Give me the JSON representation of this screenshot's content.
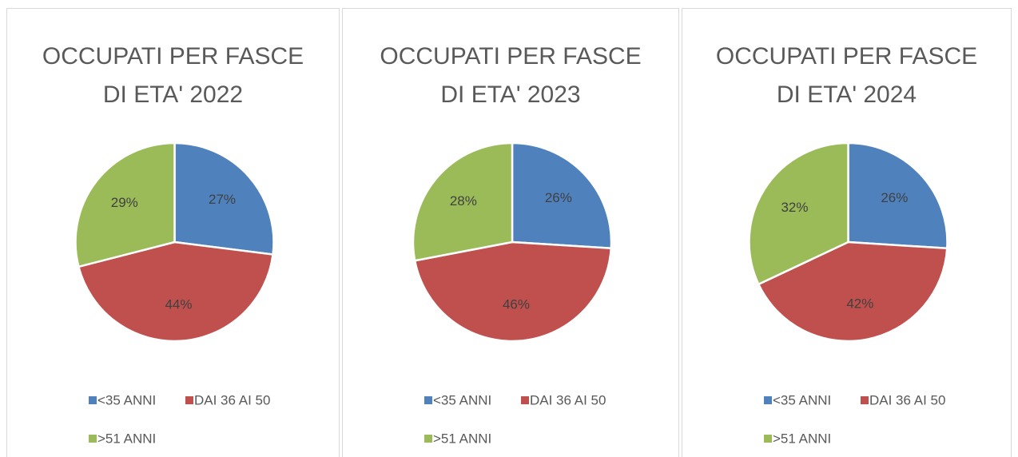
{
  "chart_data": [
    {
      "type": "pie",
      "title": "OCCUPATI PER FASCE DI ETA' 2022",
      "categories": [
        "<35 ANNI",
        "DAI 36 AI 50",
        ">51 ANNI"
      ],
      "values": [
        27,
        44,
        29
      ],
      "value_labels": [
        "27%",
        "44%",
        "29%"
      ],
      "colors": [
        "#4f81bd",
        "#c0504d",
        "#9bbb59"
      ],
      "legend": "bottom"
    },
    {
      "type": "pie",
      "title": "OCCUPATI PER FASCE DI ETA' 2023",
      "categories": [
        "<35 ANNI",
        "DAI 36 AI 50",
        ">51 ANNI"
      ],
      "values": [
        26,
        46,
        28
      ],
      "value_labels": [
        "26%",
        "46%",
        "28%"
      ],
      "colors": [
        "#4f81bd",
        "#c0504d",
        "#9bbb59"
      ],
      "legend": "bottom"
    },
    {
      "type": "pie",
      "title": "OCCUPATI PER FASCE DI ETA' 2024",
      "categories": [
        "<35 ANNI",
        "DAI 36 AI 50",
        ">51 ANNI"
      ],
      "values": [
        26,
        42,
        32
      ],
      "value_labels": [
        "26%",
        "42%",
        "32%"
      ],
      "colors": [
        "#4f81bd",
        "#c0504d",
        "#9bbb59"
      ],
      "legend": "bottom"
    }
  ]
}
